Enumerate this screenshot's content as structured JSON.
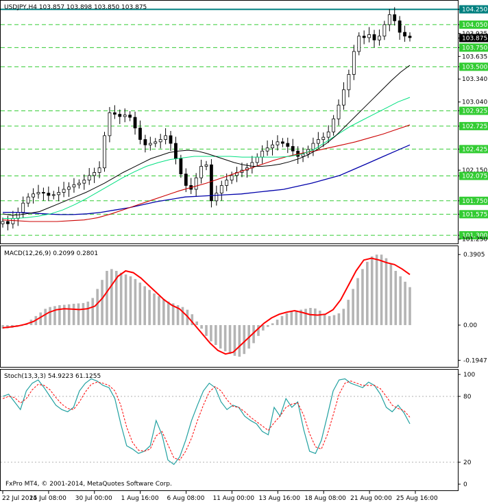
{
  "window": {
    "title": "USDJPY,H4  103.857 103.898 103.850 103.875",
    "copyright": "FxPro MT4, © 2001-2014, MetaQuotes Software Corp."
  },
  "colors": {
    "background": "#ffffff",
    "frame": "#000000",
    "candle": "#000000",
    "resistance_line": "#008080",
    "support_levels": "#33cc33",
    "sma_fast": "#000000",
    "sma_mid": "#00e080",
    "sma_slow": "#cc0000",
    "sma_long": "#0000aa",
    "macd_hist": "#b4b4b4",
    "macd_signal": "#ff0000",
    "stoch_main": "#20a0a0",
    "stoch_signal": "#ff0000",
    "current_price_bg": "#000000"
  },
  "chart_data": [
    {
      "type": "candlestick",
      "symbol": "USDJPY",
      "timeframe": "H4",
      "ohlc_current": {
        "open": 103.857,
        "high": 103.898,
        "low": 103.85,
        "close": 103.875
      },
      "ylim": [
        101.22,
        104.3
      ],
      "price_ticks": [
        "104.250",
        "104.050",
        "103.935",
        "103.875",
        "103.750",
        "103.635",
        "103.500",
        "103.340",
        "103.040",
        "102.925",
        "102.725",
        "102.425",
        "102.150",
        "102.075",
        "101.750",
        "101.575",
        "101.300",
        "101.250"
      ],
      "current_price": "103.875",
      "resistance_level": 104.25,
      "support_levels": [
        104.05,
        103.75,
        103.5,
        102.925,
        102.725,
        102.425,
        102.075,
        101.75,
        101.575,
        101.3
      ],
      "closes": [
        101.48,
        101.45,
        101.52,
        101.6,
        101.72,
        101.8,
        101.84,
        101.86,
        101.85,
        101.82,
        101.83,
        101.86,
        101.9,
        101.93,
        101.96,
        101.98,
        102.02,
        102.08,
        102.12,
        102.18,
        102.6,
        102.9,
        102.88,
        102.85,
        102.87,
        102.84,
        102.7,
        102.55,
        102.48,
        102.5,
        102.52,
        102.55,
        102.6,
        102.5,
        102.3,
        102.1,
        101.95,
        101.9,
        102.05,
        102.2,
        102.22,
        101.75,
        101.85,
        101.95,
        102.02,
        102.08,
        102.12,
        102.15,
        102.18,
        102.25,
        102.32,
        102.4,
        102.44,
        102.48,
        102.52,
        102.5,
        102.46,
        102.4,
        102.33,
        102.36,
        102.42,
        102.5,
        102.55,
        102.58,
        102.65,
        102.82,
        103.0,
        103.2,
        103.4,
        103.7,
        103.9,
        103.88,
        103.92,
        103.85,
        103.9,
        104.05,
        104.18,
        104.1,
        103.95,
        103.9,
        103.88
      ],
      "ma_fast": [
        101.58,
        101.56,
        101.57,
        101.59,
        101.61,
        101.66,
        101.71,
        101.76,
        101.81,
        101.86,
        101.92,
        101.98,
        102.05,
        102.12,
        102.18,
        102.24,
        102.3,
        102.34,
        102.38,
        102.4,
        102.41,
        102.4,
        102.37,
        102.33,
        102.29,
        102.25,
        102.22,
        102.2,
        102.2,
        102.21,
        102.23,
        102.26,
        102.3,
        102.35,
        102.42,
        102.5,
        102.6,
        102.72,
        102.84,
        102.96,
        103.08,
        103.2,
        103.32,
        103.43,
        103.52
      ],
      "ma_mid": [
        101.52,
        101.52,
        101.53,
        101.55,
        101.58,
        101.63,
        101.7,
        101.78,
        101.87,
        101.96,
        102.05,
        102.13,
        102.2,
        102.25,
        102.29,
        102.31,
        102.33,
        102.33,
        102.33,
        102.33,
        102.32,
        102.32,
        102.32,
        102.32,
        102.33,
        102.36,
        102.42,
        102.52,
        102.62,
        102.72,
        102.8,
        102.88,
        102.96,
        103.04,
        103.1
      ],
      "ma_slow": [
        101.5,
        101.49,
        101.48,
        101.48,
        101.48,
        101.49,
        101.5,
        101.53,
        101.58,
        101.64,
        101.7,
        101.76,
        101.82,
        101.88,
        101.93,
        101.98,
        102.04,
        102.1,
        102.16,
        102.22,
        102.28,
        102.33,
        102.37,
        102.4,
        102.44,
        102.48,
        102.52,
        102.57,
        102.62,
        102.68,
        102.74
      ],
      "ma_long": [
        101.6,
        101.6,
        101.59,
        101.58,
        101.57,
        101.57,
        101.58,
        101.6,
        101.63,
        101.66,
        101.7,
        101.74,
        101.77,
        101.8,
        101.81,
        101.82,
        101.83,
        101.84,
        101.86,
        101.88,
        101.9,
        101.94,
        101.98,
        102.03,
        102.08,
        102.16,
        102.24,
        102.32,
        102.4,
        102.48
      ],
      "x_labels": [
        "22 Jul 2014",
        "25 Jul 08:00",
        "30 Jul 00:00",
        "1 Aug 16:00",
        "6 Aug 08:00",
        "11 Aug 00:00",
        "13 Aug 16:00",
        "18 Aug 08:00",
        "21 Aug 00:00",
        "25 Aug 16:00"
      ]
    },
    {
      "type": "bar",
      "name": "MACD(12,26,9) 0.2099 0.2801",
      "ylim": [
        -0.22,
        0.41
      ],
      "ticks": [
        "0.3905",
        "0.00",
        "-0.1947"
      ],
      "histogram": [
        -0.02,
        -0.018,
        -0.015,
        -0.01,
        -0.005,
        0.01,
        0.03,
        0.05,
        0.07,
        0.09,
        0.1,
        0.105,
        0.11,
        0.112,
        0.115,
        0.118,
        0.12,
        0.122,
        0.13,
        0.15,
        0.2,
        0.25,
        0.3,
        0.31,
        0.3,
        0.29,
        0.28,
        0.27,
        0.255,
        0.235,
        0.215,
        0.195,
        0.175,
        0.16,
        0.145,
        0.13,
        0.12,
        0.11,
        0.1,
        0.085,
        0.06,
        0.02,
        -0.02,
        -0.06,
        -0.09,
        -0.11,
        -0.13,
        -0.145,
        -0.16,
        -0.17,
        -0.175,
        -0.16,
        -0.13,
        -0.1,
        -0.06,
        -0.03,
        -0.01,
        0.01,
        0.03,
        0.05,
        0.065,
        0.075,
        0.08,
        0.085,
        0.09,
        0.095,
        0.092,
        0.08,
        0.06,
        0.05,
        0.055,
        0.065,
        0.09,
        0.14,
        0.2,
        0.26,
        0.31,
        0.35,
        0.38,
        0.39,
        0.39,
        0.37,
        0.34,
        0.3,
        0.27,
        0.24,
        0.21
      ],
      "signal": [
        -0.015,
        -0.01,
        -0.005,
        0.005,
        0.02,
        0.045,
        0.07,
        0.085,
        0.09,
        0.088,
        0.086,
        0.09,
        0.105,
        0.15,
        0.21,
        0.27,
        0.3,
        0.29,
        0.26,
        0.22,
        0.18,
        0.14,
        0.11,
        0.09,
        0.05,
        0.0,
        -0.05,
        -0.1,
        -0.14,
        -0.16,
        -0.15,
        -0.11,
        -0.07,
        -0.03,
        0.01,
        0.04,
        0.06,
        0.072,
        0.08,
        0.07,
        0.058,
        0.055,
        0.06,
        0.085,
        0.14,
        0.22,
        0.3,
        0.36,
        0.37,
        0.36,
        0.345,
        0.335,
        0.31,
        0.28
      ]
    },
    {
      "type": "line",
      "name": "Stoch(13,3,3) 54.9223 61.1255",
      "ylim": [
        0,
        100
      ],
      "ticks": [
        "100",
        "80",
        "20",
        "0"
      ],
      "main": [
        80,
        82,
        75,
        68,
        85,
        92,
        95,
        88,
        80,
        72,
        68,
        66,
        70,
        85,
        92,
        96,
        94,
        90,
        88,
        78,
        55,
        35,
        32,
        28,
        30,
        35,
        58,
        45,
        22,
        18,
        25,
        40,
        58,
        72,
        85,
        92,
        88,
        75,
        68,
        72,
        70,
        62,
        58,
        55,
        48,
        45,
        70,
        62,
        78,
        70,
        75,
        50,
        30,
        28,
        40,
        62,
        85,
        95,
        96,
        92,
        90,
        88,
        93,
        90,
        82,
        70,
        66,
        72,
        65,
        55
      ],
      "signal": [
        78,
        80,
        79,
        74,
        78,
        86,
        91,
        90,
        86,
        79,
        73,
        69,
        68,
        75,
        84,
        91,
        93,
        92,
        90,
        85,
        72,
        52,
        38,
        31,
        30,
        32,
        44,
        48,
        36,
        24,
        22,
        30,
        42,
        58,
        72,
        84,
        89,
        85,
        77,
        71,
        70,
        66,
        61,
        57,
        53,
        49,
        56,
        62,
        70,
        73,
        74,
        63,
        46,
        34,
        32,
        45,
        63,
        82,
        92,
        94,
        92,
        90,
        90,
        90,
        87,
        80,
        72,
        69,
        67,
        61
      ]
    }
  ]
}
